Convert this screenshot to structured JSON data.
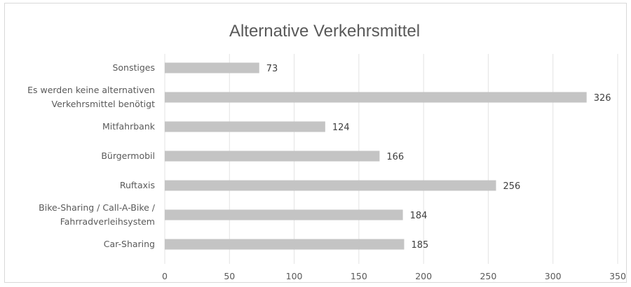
{
  "chart_data": {
    "type": "bar",
    "orientation": "horizontal",
    "title": "Alternative Verkehrsmittel",
    "categories": [
      [
        "Sonstiges"
      ],
      [
        "Es werden keine alternativen",
        "Verkehrsmittel benötigt"
      ],
      [
        "Mitfahrbank"
      ],
      [
        "Bürgermobil"
      ],
      [
        "Ruftaxis"
      ],
      [
        "Bike-Sharing / Call-A-Bike /",
        "Fahrradverleihsystem"
      ],
      [
        "Car-Sharing"
      ]
    ],
    "values": [
      73,
      326,
      124,
      166,
      256,
      184,
      185
    ],
    "xlim": [
      0,
      350
    ],
    "xticks": [
      0,
      50,
      100,
      150,
      200,
      250,
      300,
      350
    ],
    "grid": true,
    "bar_color": "#c4c4c4",
    "data_labels": true,
    "legend": "none"
  }
}
